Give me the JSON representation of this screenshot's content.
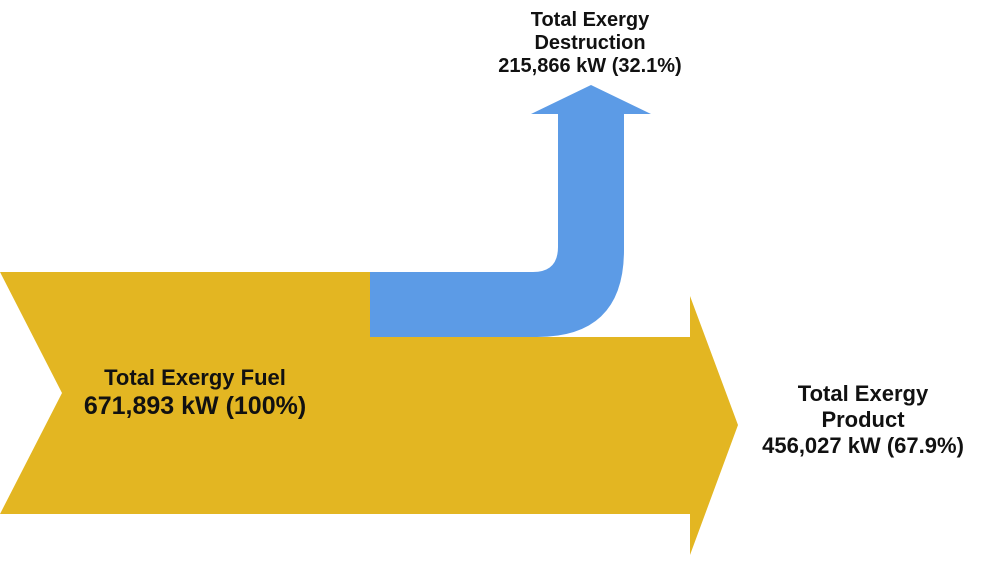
{
  "colors": {
    "fuel": "#E3B622",
    "destruction": "#5C9BE6",
    "text": "#111111",
    "background": "#FFFFFF"
  },
  "flows": {
    "fuel": {
      "label": "Total Exergy Fuel",
      "value_text": "671,893 kW (100%)",
      "value_kw": 671893,
      "percent": 100
    },
    "destruction": {
      "label_line1": "Total Exergy",
      "label_line2": "Destruction",
      "value_text": "215,866 kW (32.1%)",
      "value_kw": 215866,
      "percent": 32.1
    },
    "product": {
      "label_line1": "Total Exergy",
      "label_line2": "Product",
      "value_text": "456,027 kW (67.9%)",
      "value_kw": 456027,
      "percent": 67.9
    }
  }
}
